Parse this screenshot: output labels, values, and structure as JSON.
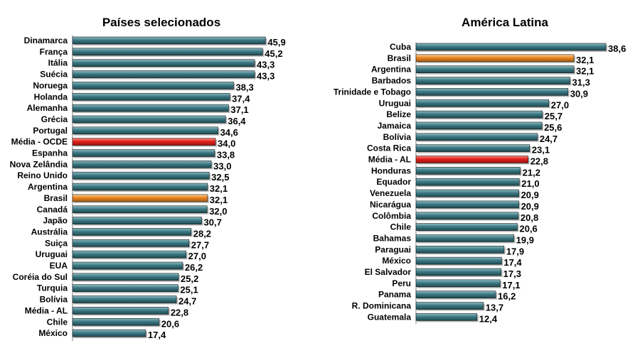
{
  "chart_data": [
    {
      "type": "bar",
      "orientation": "horizontal",
      "title": "Países selecionados",
      "categories": [
        "Dinamarca",
        "França",
        "Itália",
        "Suécia",
        "Noruega",
        "Holanda",
        "Alemanha",
        "Grécia",
        "Portugal",
        "Média - OCDE",
        "Espanha",
        "Nova Zelândia",
        "Reino Unido",
        "Argentina",
        "Brasil",
        "Canadá",
        "Japão",
        "Austrália",
        "Suiça",
        "Uruguai",
        "EUA",
        "Coréia do Sul",
        "Turquia",
        "Bolívia",
        "Média - AL",
        "Chile",
        "México"
      ],
      "values": [
        45.9,
        45.2,
        43.3,
        43.3,
        38.3,
        37.4,
        37.1,
        36.4,
        34.6,
        34.0,
        33.8,
        33.0,
        32.5,
        32.1,
        32.1,
        32.0,
        30.7,
        28.2,
        27.7,
        27.0,
        26.2,
        25.2,
        25.1,
        24.7,
        22.8,
        20.6,
        17.4
      ],
      "labels": [
        "45,9",
        "45,2",
        "43,3",
        "43,3",
        "38,3",
        "37,4",
        "37,1",
        "36,4",
        "34,6",
        "34,0",
        "33,8",
        "33,0",
        "32,5",
        "32,1",
        "32,1",
        "32,0",
        "30,7",
        "28,2",
        "27,7",
        "27,0",
        "26,2",
        "25,2",
        "25,1",
        "24,7",
        "22,8",
        "20,6",
        "17,4"
      ],
      "highlights": {
        "Média - OCDE": "#e0201c",
        "Brasil": "#e8851e"
      },
      "bar_color": "#2c5f67",
      "xlim": [
        0,
        46
      ],
      "grid": false
    },
    {
      "type": "bar",
      "orientation": "horizontal",
      "title": "América Latina",
      "categories": [
        "Cuba",
        "Brasil",
        "Argentina",
        "Barbados",
        "Trinidade e Tobago",
        "Uruguai",
        "Belize",
        "Jamaica",
        "Bolívia",
        "Costa Rica",
        "Média - AL",
        "Honduras",
        "Equador",
        "Venezuela",
        "Nicarágua",
        "Colômbia",
        "Chile",
        "Bahamas",
        "Paraguai",
        "México",
        "El Salvador",
        "Peru",
        "Panama",
        "R. Dominicana",
        "Guatemala"
      ],
      "values": [
        38.6,
        32.1,
        32.1,
        31.3,
        30.9,
        27.0,
        25.7,
        25.6,
        24.7,
        23.1,
        22.8,
        21.2,
        21.0,
        20.9,
        20.9,
        20.8,
        20.6,
        19.9,
        17.9,
        17.4,
        17.3,
        17.1,
        16.2,
        13.7,
        12.4
      ],
      "labels": [
        "38,6",
        "32,1",
        "32,1",
        "31,3",
        "30,9",
        "27,0",
        "25,7",
        "25,6",
        "24,7",
        "23,1",
        "22,8",
        "21,2",
        "21,0",
        "20,9",
        "20,9",
        "20,8",
        "20,6",
        "19,9",
        "17,9",
        "17,4",
        "17,3",
        "17,1",
        "16,2",
        "13,7",
        "12,4"
      ],
      "highlights": {
        "Brasil": "#e8851e",
        "Média - AL": "#e0201c"
      },
      "bar_color": "#2c5f67",
      "xlim": [
        0,
        38.6
      ],
      "grid": false
    }
  ]
}
